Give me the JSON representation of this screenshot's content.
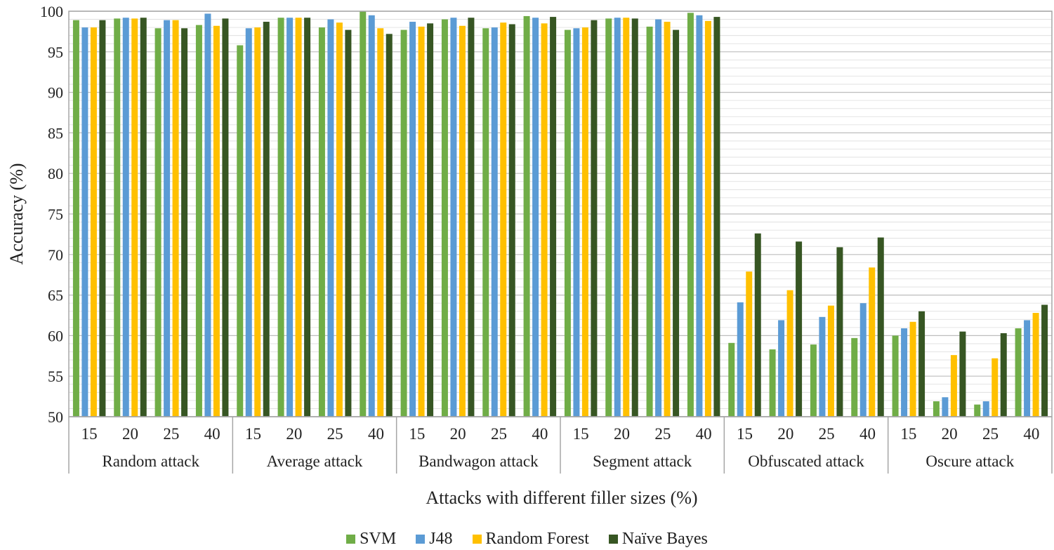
{
  "chart_data": {
    "type": "bar",
    "title": "",
    "xlabel": "Attacks with different filler sizes (%)",
    "ylabel": "Accuracy (%)",
    "ylim": [
      50,
      100
    ],
    "yticks": [
      50,
      55,
      60,
      65,
      70,
      75,
      80,
      85,
      90,
      95,
      100
    ],
    "grid": true,
    "legend_position": "bottom",
    "groups": [
      {
        "label": "Random attack",
        "subcategories": [
          "15",
          "20",
          "25",
          "40"
        ]
      },
      {
        "label": "Average attack",
        "subcategories": [
          "15",
          "20",
          "25",
          "40"
        ]
      },
      {
        "label": "Bandwagon attack",
        "subcategories": [
          "15",
          "20",
          "25",
          "40"
        ]
      },
      {
        "label": "Segment attack",
        "subcategories": [
          "15",
          "20",
          "25",
          "40"
        ]
      },
      {
        "label": "Obfuscated attack",
        "subcategories": [
          "15",
          "20",
          "25",
          "40"
        ]
      },
      {
        "label": "Oscure attack",
        "subcategories": [
          "15",
          "20",
          "25",
          "40"
        ]
      }
    ],
    "series": [
      {
        "name": "SVM",
        "color": "#70ad47",
        "values": [
          98.9,
          99.1,
          97.9,
          98.3,
          95.8,
          99.2,
          98.0,
          100.0,
          97.7,
          99.0,
          97.9,
          99.4,
          97.7,
          99.1,
          98.1,
          99.8,
          59.1,
          58.3,
          58.9,
          59.7,
          60.0,
          51.9,
          51.5,
          60.9
        ]
      },
      {
        "name": "J48",
        "color": "#5b9bd5",
        "values": [
          98.0,
          99.2,
          98.9,
          99.7,
          97.9,
          99.2,
          99.0,
          99.5,
          98.7,
          99.2,
          98.0,
          99.2,
          97.9,
          99.2,
          99.0,
          99.5,
          64.1,
          61.9,
          62.3,
          64.0,
          60.9,
          52.4,
          51.9,
          61.9
        ]
      },
      {
        "name": "Random Forest",
        "color": "#ffc000",
        "values": [
          98.0,
          99.1,
          98.9,
          98.2,
          98.0,
          99.2,
          98.6,
          97.9,
          98.1,
          98.2,
          98.6,
          98.5,
          98.0,
          99.2,
          98.7,
          98.8,
          67.9,
          65.6,
          63.7,
          68.4,
          61.7,
          57.6,
          57.2,
          62.8
        ]
      },
      {
        "name": "Naïve Bayes",
        "color": "#375623",
        "values": [
          98.9,
          99.2,
          97.9,
          99.1,
          98.7,
          99.2,
          97.7,
          97.2,
          98.5,
          99.2,
          98.4,
          99.3,
          98.9,
          99.1,
          97.7,
          99.3,
          72.6,
          71.6,
          70.9,
          72.1,
          63.0,
          60.5,
          60.3,
          63.8
        ]
      }
    ]
  }
}
